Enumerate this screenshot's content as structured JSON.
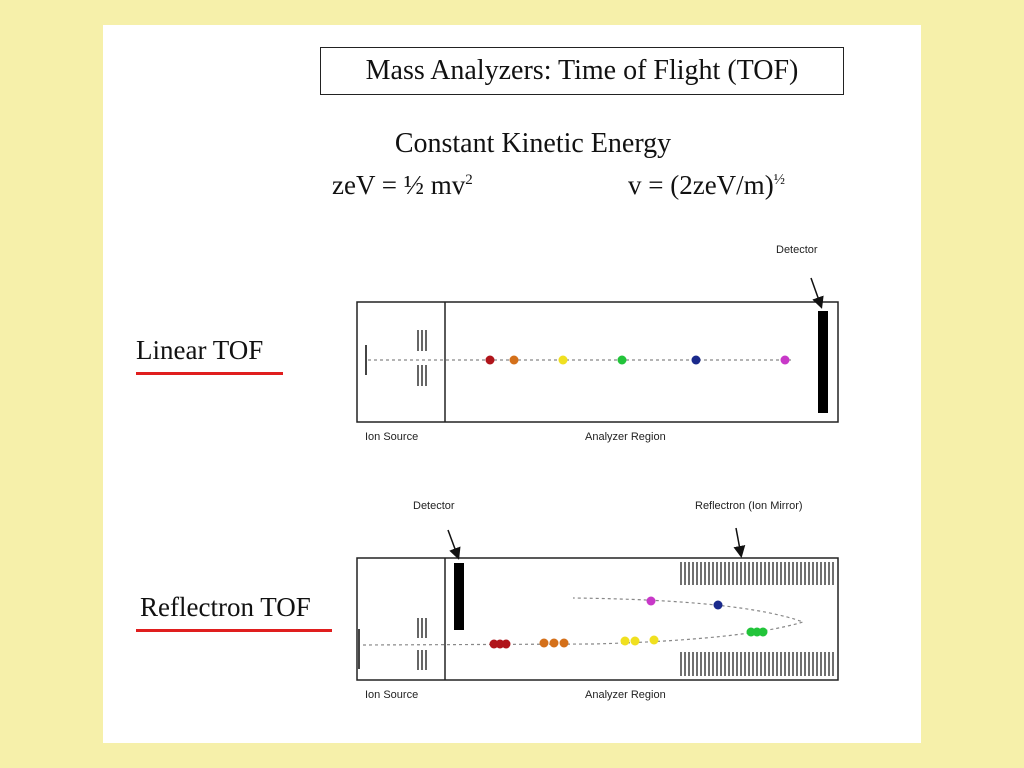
{
  "title": "Mass Analyzers:  Time of Flight (TOF)",
  "heading": "Constant Kinetic Energy",
  "equations": {
    "left": "zeV = ½ mv",
    "left_sup": "2",
    "right": "v = (2zeV/m)",
    "right_sup": "½"
  },
  "linear": {
    "label": "Linear TOF",
    "detector_label": "Detector",
    "ion_source_label": "Ion Source",
    "analyzer_label": "Analyzer Region"
  },
  "reflectron": {
    "label": "Reflectron TOF",
    "detector_label": "Detector",
    "mirror_label": "Reflectron (Ion Mirror)",
    "ion_source_label": "Ion Source",
    "analyzer_label": "Analyzer Region"
  },
  "colors": {
    "background": "#f6f0aa",
    "underline": "#e01e1e",
    "ion_dark_red": "#b0141a",
    "ion_orange": "#d4701a",
    "ion_yellow": "#f0e020",
    "ion_green": "#22c43a",
    "ion_navy": "#1a2a8c",
    "ion_magenta": "#c838c8"
  }
}
